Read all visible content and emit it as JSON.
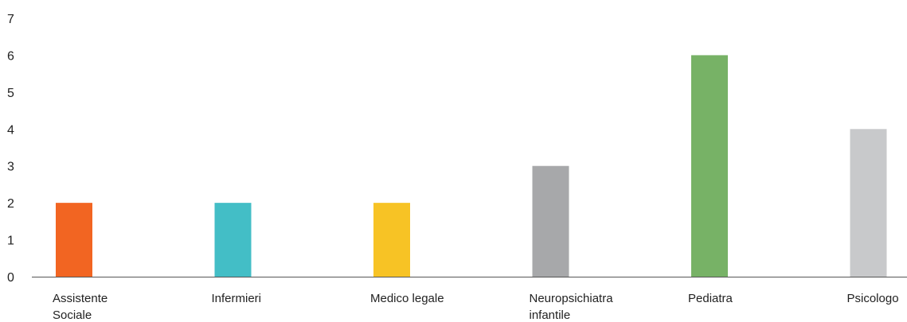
{
  "chart_data": {
    "type": "bar",
    "categories": [
      "Assistente Sociale",
      "Infermieri",
      "Medico legale",
      "Neuropsichiatra infantile",
      "Pediatra",
      "Psicologo"
    ],
    "category_lines": [
      [
        "Assistente",
        "Sociale"
      ],
      [
        "Infermieri"
      ],
      [
        "Medico legale"
      ],
      [
        "Neuropsichiatra",
        "infantile"
      ],
      [
        "Pediatra"
      ],
      [
        "Psicologo"
      ]
    ],
    "values": [
      2,
      2,
      2,
      3,
      6,
      4
    ],
    "colors": [
      "#f26522",
      "#43bec6",
      "#f7c325",
      "#a7a8aa",
      "#77b266",
      "#c8c9cb"
    ],
    "y_ticks": [
      "0",
      "1",
      "2",
      "3",
      "4",
      "5",
      "6",
      "7"
    ],
    "ylim": [
      0,
      7
    ],
    "grid": false,
    "axis_color": "#555555",
    "title": "",
    "xlabel": "",
    "ylabel": ""
  }
}
